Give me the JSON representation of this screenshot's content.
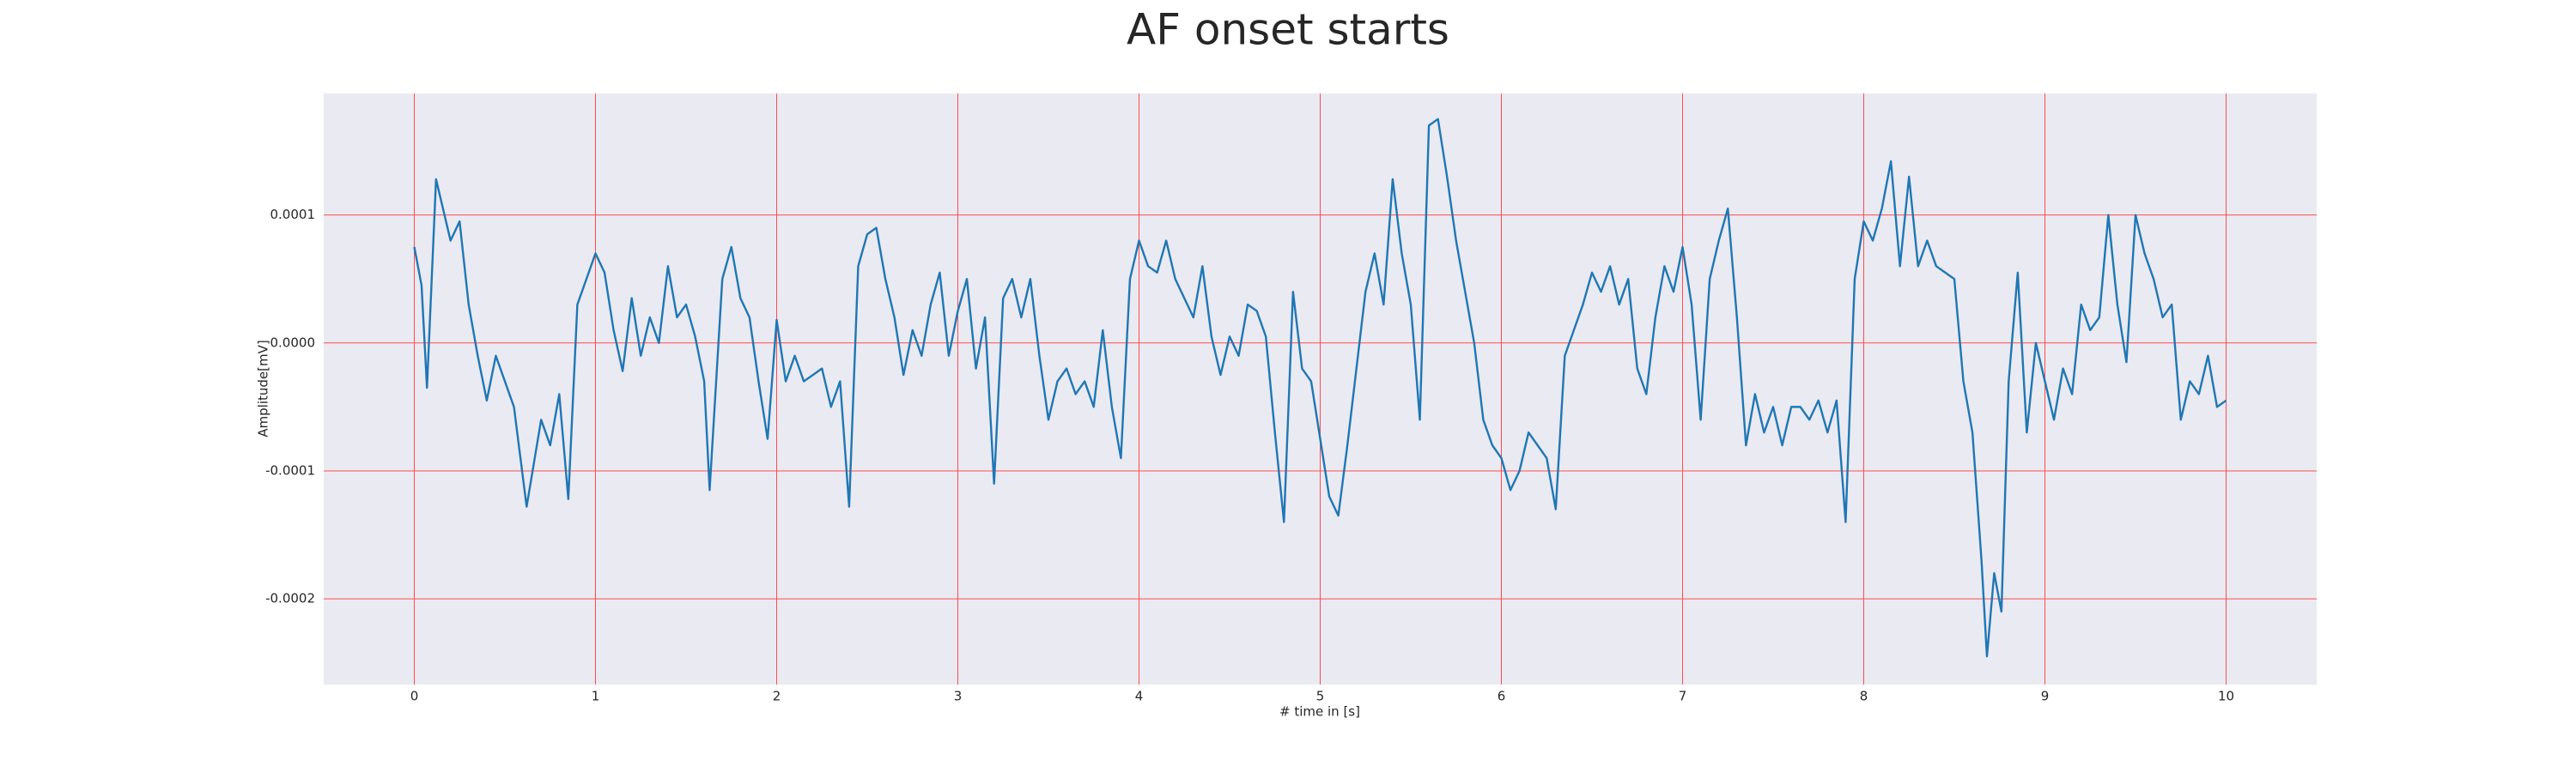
{
  "chart_data": {
    "type": "line",
    "title": "AF onset starts",
    "xlabel": "# time in [s]",
    "ylabel": "Amplitude[mV]",
    "xlim": [
      -0.5,
      10.5
    ],
    "xticks": [
      0,
      1,
      2,
      3,
      4,
      5,
      6,
      7,
      8,
      9,
      10
    ],
    "ylim": [
      -0.000267,
      0.000195
    ],
    "yticks": [
      0.0001,
      {
        "value": 0,
        "label": "0.0000"
      },
      -0.0001,
      -0.0002
    ],
    "grid": true,
    "grid_color": "#ff4d4d",
    "background": "#eaeaf2",
    "x": [
      0,
      0.04,
      0.07,
      0.12,
      0.2,
      0.25,
      0.3,
      0.35,
      0.4,
      0.45,
      0.5,
      0.55,
      0.62,
      0.7,
      0.75,
      0.8,
      0.85,
      0.9,
      0.95,
      1.0,
      1.05,
      1.1,
      1.15,
      1.2,
      1.25,
      1.3,
      1.35,
      1.4,
      1.45,
      1.5,
      1.55,
      1.6,
      1.63,
      1.7,
      1.75,
      1.8,
      1.85,
      1.9,
      1.95,
      2.0,
      2.05,
      2.1,
      2.15,
      2.2,
      2.25,
      2.3,
      2.35,
      2.4,
      2.45,
      2.5,
      2.55,
      2.6,
      2.65,
      2.7,
      2.75,
      2.8,
      2.85,
      2.9,
      2.95,
      3.0,
      3.05,
      3.1,
      3.15,
      3.2,
      3.25,
      3.3,
      3.35,
      3.4,
      3.45,
      3.5,
      3.55,
      3.6,
      3.65,
      3.7,
      3.75,
      3.8,
      3.85,
      3.9,
      3.95,
      4.0,
      4.05,
      4.1,
      4.15,
      4.2,
      4.3,
      4.35,
      4.4,
      4.45,
      4.5,
      4.55,
      4.6,
      4.65,
      4.7,
      4.75,
      4.8,
      4.85,
      4.9,
      4.95,
      5.0,
      5.05,
      5.1,
      5.15,
      5.2,
      5.25,
      5.3,
      5.35,
      5.4,
      5.45,
      5.5,
      5.55,
      5.6,
      5.65,
      5.7,
      5.75,
      5.8,
      5.85,
      5.9,
      5.95,
      6.0,
      6.05,
      6.1,
      6.15,
      6.2,
      6.25,
      6.3,
      6.35,
      6.4,
      6.45,
      6.5,
      6.55,
      6.6,
      6.65,
      6.7,
      6.75,
      6.8,
      6.85,
      6.9,
      6.95,
      7.0,
      7.05,
      7.1,
      7.15,
      7.2,
      7.25,
      7.3,
      7.35,
      7.4,
      7.45,
      7.5,
      7.55,
      7.6,
      7.65,
      7.7,
      7.75,
      7.8,
      7.85,
      7.9,
      7.95,
      8.0,
      8.05,
      8.1,
      8.15,
      8.2,
      8.25,
      8.3,
      8.35,
      8.4,
      8.5,
      8.55,
      8.6,
      8.65,
      8.68,
      8.72,
      8.76,
      8.8,
      8.85,
      8.9,
      8.95,
      9.0,
      9.05,
      9.1,
      9.15,
      9.2,
      9.25,
      9.3,
      9.35,
      9.4,
      9.45,
      9.5,
      9.55,
      9.6,
      9.65,
      9.7,
      9.75,
      9.8,
      9.85,
      9.9,
      9.95,
      10.0
    ],
    "series": [
      {
        "color": "#1f77b4",
        "values": [
          7.5e-05,
          4.5e-05,
          -3.5e-05,
          0.000128,
          8e-05,
          9.5e-05,
          3e-05,
          -1e-05,
          -4.5e-05,
          -1e-05,
          -3e-05,
          -5e-05,
          -0.000128,
          -6e-05,
          -8e-05,
          -4e-05,
          -0.000122,
          3e-05,
          5e-05,
          7e-05,
          5.5e-05,
          1e-05,
          -2.2e-05,
          3.5e-05,
          -1e-05,
          2e-05,
          0.0,
          6e-05,
          2e-05,
          3e-05,
          5e-06,
          -3e-05,
          -0.000115,
          5e-05,
          7.5e-05,
          3.5e-05,
          2e-05,
          -3e-05,
          -7.5e-05,
          1.8e-05,
          -3e-05,
          -1e-05,
          -3e-05,
          -2.5e-05,
          -2e-05,
          -5e-05,
          -3e-05,
          -0.000128,
          6e-05,
          8.5e-05,
          9e-05,
          5e-05,
          2e-05,
          -2.5e-05,
          1e-05,
          -1e-05,
          3e-05,
          5.5e-05,
          -1e-05,
          2.5e-05,
          5e-05,
          -2e-05,
          2e-05,
          -0.00011,
          3.5e-05,
          5e-05,
          2e-05,
          5e-05,
          -1e-05,
          -6e-05,
          -3e-05,
          -2e-05,
          -4e-05,
          -3e-05,
          -5e-05,
          1e-05,
          -5e-05,
          -9e-05,
          5e-05,
          8e-05,
          6e-05,
          5.5e-05,
          8e-05,
          5e-05,
          2e-05,
          6e-05,
          5e-06,
          -2.5e-05,
          5e-06,
          -1e-05,
          3e-05,
          2.5e-05,
          5e-06,
          -7e-05,
          -0.00014,
          4e-05,
          -2e-05,
          -3e-05,
          -7.5e-05,
          -0.00012,
          -0.000135,
          -8e-05,
          -2e-05,
          4e-05,
          7e-05,
          3e-05,
          0.000128,
          7e-05,
          3e-05,
          -6e-05,
          0.00017,
          0.000175,
          0.00013,
          8e-05,
          4e-05,
          0.0,
          -6e-05,
          -8e-05,
          -9e-05,
          -0.000115,
          -0.0001,
          -7e-05,
          -8e-05,
          -9e-05,
          -0.00013,
          -1e-05,
          1e-05,
          3e-05,
          5.5e-05,
          4e-05,
          6e-05,
          3e-05,
          5e-05,
          -2e-05,
          -4e-05,
          2e-05,
          6e-05,
          4e-05,
          7.5e-05,
          3e-05,
          -6e-05,
          5e-05,
          8e-05,
          0.000105,
          2e-05,
          -8e-05,
          -4e-05,
          -7e-05,
          -5e-05,
          -8e-05,
          -5e-05,
          -5e-05,
          -6e-05,
          -4.5e-05,
          -7e-05,
          -4.5e-05,
          -0.00014,
          5e-05,
          9.5e-05,
          8e-05,
          0.000105,
          0.000142,
          6e-05,
          0.00013,
          6e-05,
          8e-05,
          6e-05,
          5e-05,
          -3e-05,
          -7e-05,
          -0.00017,
          -0.000245,
          -0.00018,
          -0.00021,
          -3e-05,
          5.5e-05,
          -7e-05,
          0.0,
          -3e-05,
          -6e-05,
          -2e-05,
          -4e-05,
          3e-05,
          1e-05,
          2e-05,
          0.0001,
          3e-05,
          -1.5e-05,
          0.0001,
          7e-05,
          5e-05,
          2e-05,
          3e-05,
          -6e-05,
          -3e-05,
          -4e-05,
          -1e-05,
          -5e-05,
          -4.5e-05
        ]
      }
    ]
  }
}
